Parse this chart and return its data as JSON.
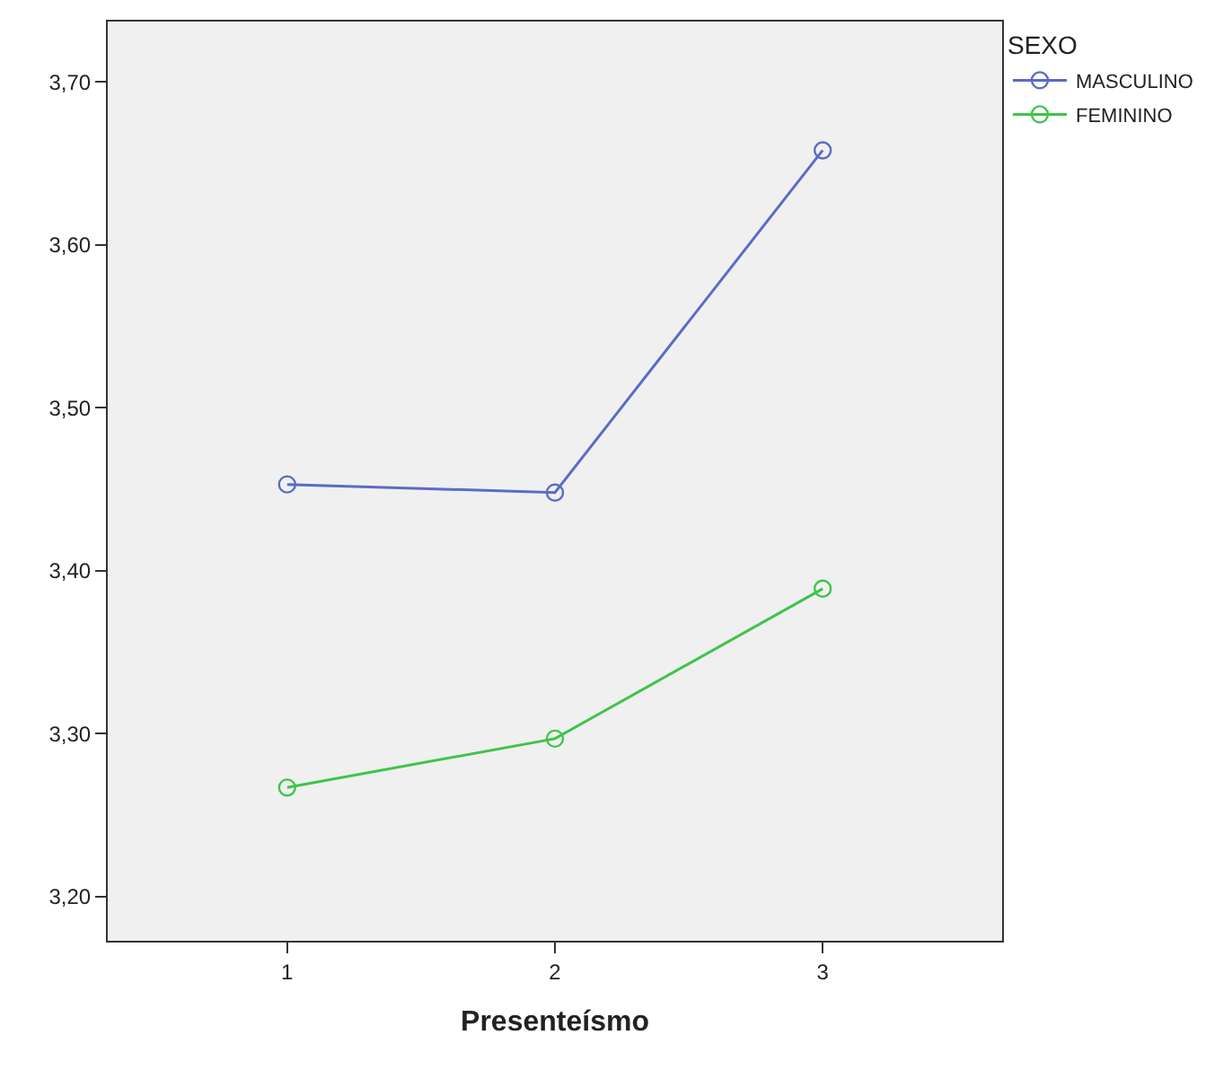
{
  "chart_data": {
    "type": "line",
    "xlabel": "Presenteísmo",
    "legend_title": "SEXO",
    "categories": [
      "1",
      "2",
      "3"
    ],
    "series": [
      {
        "name": "MASCULINO",
        "color": "#5b6cc4",
        "values": [
          3.453,
          3.448,
          3.658
        ]
      },
      {
        "name": "FEMININO",
        "color": "#3ec44c",
        "values": [
          3.267,
          3.297,
          3.389
        ]
      }
    ],
    "ylim": [
      3.173,
      3.737
    ],
    "yticks": [
      {
        "value": 3.2,
        "label": "3,20"
      },
      {
        "value": 3.3,
        "label": "3,30"
      },
      {
        "value": 3.4,
        "label": "3,40"
      },
      {
        "value": 3.5,
        "label": "3,50"
      },
      {
        "value": 3.6,
        "label": "3,60"
      },
      {
        "value": 3.7,
        "label": "3,70"
      }
    ],
    "grid": false,
    "legend": "top right",
    "marker": "circle",
    "line_style": "solid"
  }
}
